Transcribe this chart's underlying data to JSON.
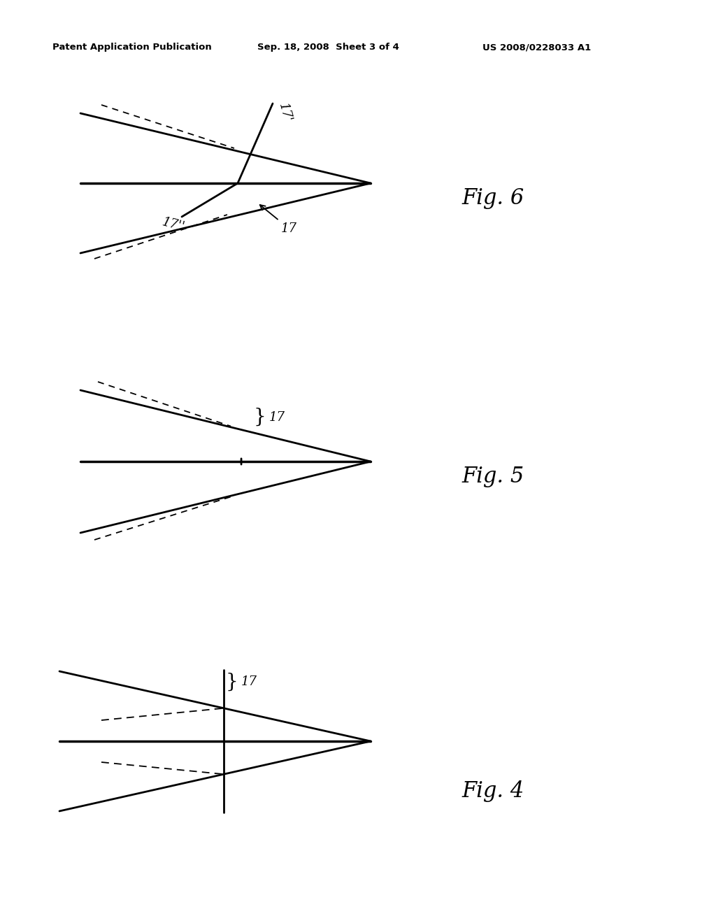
{
  "bg_color": "#ffffff",
  "line_color": "#000000",
  "header_left": "Patent Application Publication",
  "header_mid": "Sep. 18, 2008  Sheet 3 of 4",
  "header_right": "US 2008/0228033 A1",
  "fig4_label": "Fig. 4",
  "fig5_label": "Fig. 5",
  "fig6_label": "Fig. 6",
  "label_17": "17",
  "label_17p": "17'",
  "label_17pp": "17''"
}
